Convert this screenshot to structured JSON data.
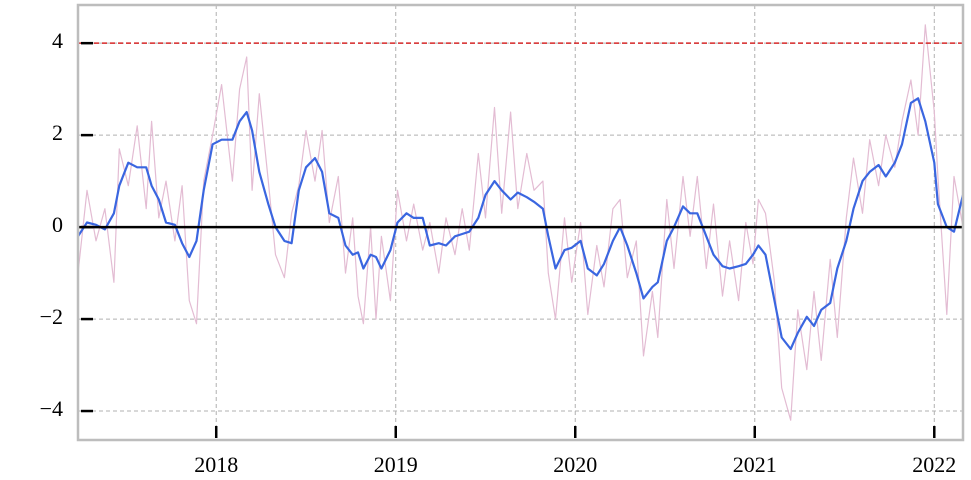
{
  "chart_data": {
    "type": "line",
    "x": [
      2017.23,
      2017.28,
      2017.33,
      2017.38,
      2017.43,
      2017.46,
      2017.51,
      2017.56,
      2017.61,
      2017.64,
      2017.68,
      2017.72,
      2017.77,
      2017.81,
      2017.85,
      2017.89,
      2017.93,
      2017.98,
      2018.03,
      2018.09,
      2018.13,
      2018.17,
      2018.2,
      2018.24,
      2018.29,
      2018.33,
      2018.38,
      2018.42,
      2018.46,
      2018.5,
      2018.55,
      2018.59,
      2018.63,
      2018.68,
      2018.72,
      2018.76,
      2018.79,
      2018.82,
      2018.86,
      2018.89,
      2018.92,
      2018.97,
      2019.01,
      2019.06,
      2019.1,
      2019.15,
      2019.19,
      2019.24,
      2019.28,
      2019.33,
      2019.37,
      2019.41,
      2019.46,
      2019.5,
      2019.55,
      2019.59,
      2019.64,
      2019.68,
      2019.73,
      2019.77,
      2019.82,
      2019.85,
      2019.89,
      2019.94,
      2019.98,
      2020.03,
      2020.07,
      2020.12,
      2020.16,
      2020.21,
      2020.25,
      2020.29,
      2020.34,
      2020.38,
      2020.43,
      2020.46,
      2020.51,
      2020.55,
      2020.6,
      2020.64,
      2020.68,
      2020.73,
      2020.77,
      2020.82,
      2020.86,
      2020.91,
      2020.95,
      2020.99,
      2021.02,
      2021.06,
      2021.11,
      2021.15,
      2021.2,
      2021.24,
      2021.29,
      2021.33,
      2021.37,
      2021.42,
      2021.46,
      2021.51,
      2021.55,
      2021.6,
      2021.64,
      2021.69,
      2021.73,
      2021.78,
      2021.82,
      2021.87,
      2021.91,
      2021.95,
      2022.0,
      2022.02,
      2022.07,
      2022.11,
      2022.16
    ],
    "series": [
      {
        "color": "#e3bcd3",
        "width": 1.2,
        "values": [
          -1.0,
          0.8,
          -0.3,
          0.4,
          -1.2,
          1.7,
          0.9,
          2.2,
          0.4,
          2.3,
          0.2,
          1.0,
          -0.3,
          0.9,
          -1.6,
          -2.1,
          1.0,
          2.0,
          3.1,
          1.0,
          3.0,
          3.7,
          0.8,
          2.9,
          1.0,
          -0.6,
          -1.1,
          0.3,
          0.9,
          2.1,
          1.0,
          2.1,
          0.1,
          1.1,
          -1.0,
          0.2,
          -1.5,
          -2.1,
          0.0,
          -2.0,
          -0.2,
          -1.6,
          0.8,
          -0.3,
          0.5,
          -0.5,
          0.1,
          -1.0,
          0.2,
          -0.6,
          0.4,
          -0.5,
          1.6,
          0.2,
          2.6,
          0.3,
          2.5,
          0.4,
          1.6,
          0.8,
          1.0,
          -1.0,
          -2.0,
          0.2,
          -1.2,
          0.1,
          -1.9,
          -0.4,
          -1.3,
          0.4,
          0.6,
          -1.1,
          -0.3,
          -2.8,
          -1.4,
          -2.4,
          0.6,
          -0.9,
          1.1,
          -0.2,
          1.1,
          -0.9,
          0.5,
          -1.5,
          -0.3,
          -1.6,
          0.1,
          -0.8,
          0.6,
          0.3,
          -1.2,
          -3.5,
          -4.2,
          -1.8,
          -3.1,
          -1.4,
          -2.9,
          -0.7,
          -2.4,
          0.2,
          1.5,
          0.3,
          1.9,
          0.9,
          2.0,
          1.3,
          2.3,
          3.2,
          2.0,
          4.4,
          2.5,
          1.1,
          -1.9,
          1.1,
          0.0
        ]
      },
      {
        "color": "#3a66e0",
        "width": 2.2,
        "values": [
          -0.2,
          0.1,
          0.05,
          -0.05,
          0.3,
          0.9,
          1.4,
          1.3,
          1.3,
          0.9,
          0.6,
          0.1,
          0.05,
          -0.35,
          -0.65,
          -0.3,
          0.8,
          1.8,
          1.9,
          1.9,
          2.3,
          2.5,
          2.1,
          1.2,
          0.5,
          0.0,
          -0.3,
          -0.35,
          0.8,
          1.3,
          1.5,
          1.2,
          0.3,
          0.2,
          -0.4,
          -0.6,
          -0.55,
          -0.9,
          -0.6,
          -0.65,
          -0.9,
          -0.5,
          0.1,
          0.3,
          0.2,
          0.2,
          -0.4,
          -0.35,
          -0.4,
          -0.2,
          -0.15,
          -0.1,
          0.2,
          0.7,
          1.0,
          0.8,
          0.6,
          0.75,
          0.65,
          0.55,
          0.4,
          -0.2,
          -0.9,
          -0.5,
          -0.45,
          -0.3,
          -0.9,
          -1.05,
          -0.8,
          -0.3,
          0.0,
          -0.4,
          -1.0,
          -1.55,
          -1.3,
          -1.2,
          -0.3,
          0.0,
          0.45,
          0.3,
          0.3,
          -0.2,
          -0.6,
          -0.85,
          -0.9,
          -0.85,
          -0.8,
          -0.6,
          -0.4,
          -0.6,
          -1.6,
          -2.4,
          -2.65,
          -2.3,
          -1.95,
          -2.15,
          -1.8,
          -1.65,
          -0.9,
          -0.3,
          0.4,
          1.0,
          1.2,
          1.35,
          1.1,
          1.4,
          1.8,
          2.7,
          2.8,
          2.3,
          1.4,
          0.5,
          0.0,
          -0.1,
          0.7
        ]
      }
    ],
    "hlines": [
      {
        "value": 0,
        "color": "#000000",
        "style": "solid"
      },
      {
        "value": 4,
        "color": "#d62728",
        "style": "dashed"
      }
    ],
    "xlim": [
      2017.23,
      2022.16
    ],
    "xticks": [
      2018,
      2019,
      2020,
      2021,
      2022
    ],
    "ylim": [
      -4.63,
      4.83
    ],
    "yticks": [
      {
        "value": -4,
        "label": "−4"
      },
      {
        "value": -2,
        "label": "−2"
      },
      0,
      2,
      4
    ],
    "grid": true
  }
}
